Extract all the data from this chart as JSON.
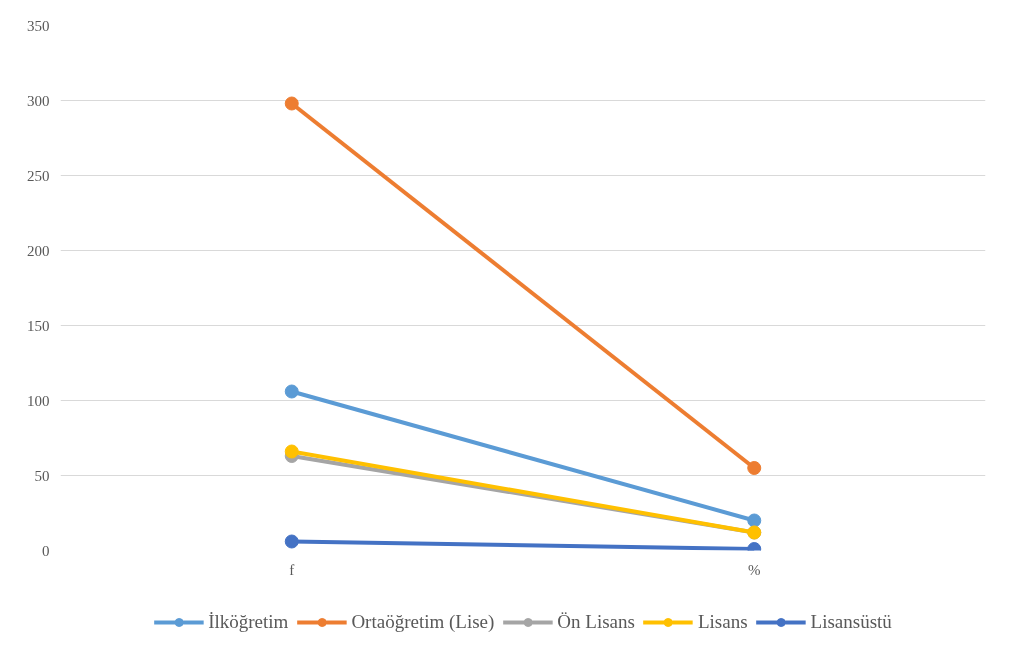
{
  "chart_data": {
    "type": "line",
    "categories": [
      "f",
      "%"
    ],
    "series": [
      {
        "name": "İlköğretim",
        "color": "#5b9bd5",
        "values": [
          106,
          20
        ]
      },
      {
        "name": "Ortaöğretim (Lise)",
        "color": "#ed7d31",
        "values": [
          298,
          55
        ]
      },
      {
        "name": "Ön Lisans",
        "color": "#a5a5a5",
        "values": [
          63,
          12
        ]
      },
      {
        "name": "Lisans",
        "color": "#ffc000",
        "values": [
          66,
          12
        ]
      },
      {
        "name": "Lisansüstü",
        "color": "#4472c4",
        "values": [
          6,
          1
        ]
      }
    ],
    "ylim": [
      0,
      350
    ],
    "yticks": [
      0,
      50,
      100,
      150,
      200,
      250,
      300,
      350
    ],
    "grid": "y",
    "legend": "bottom",
    "marker": "circle",
    "line_style": "solid"
  }
}
